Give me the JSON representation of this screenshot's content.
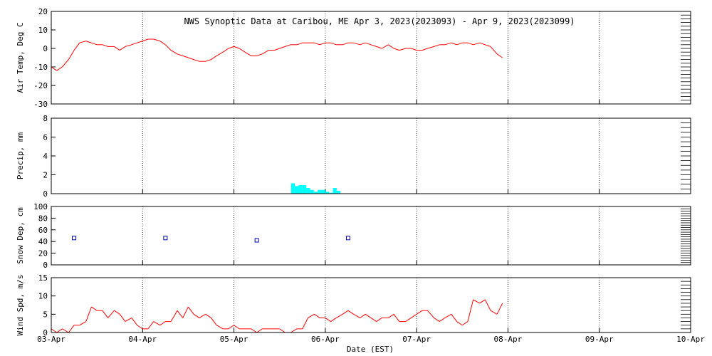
{
  "title": "NWS Synoptic Data at Caribou, ME   Apr  3, 2023(2023093) - Apr  9, 2023(2023099)",
  "xlabel": "Date (EST)",
  "colors": {
    "temp": "#ff0000",
    "precip": "#00ffff",
    "snow": "#0000aa",
    "wind": "#ff0000",
    "axis": "#000000",
    "grid": "#000000"
  },
  "chart_data": [
    {
      "type": "line",
      "name": "air-temp",
      "ylabel": "Air Temp, Deg C",
      "ylim": [
        -30,
        20
      ],
      "yticks": [
        -30,
        -20,
        -10,
        0,
        10,
        20
      ],
      "xlim": [
        0,
        7
      ],
      "xticks": [
        0,
        1,
        2,
        3,
        4,
        5,
        6,
        7
      ],
      "xticklabels": [
        "03-Apr",
        "04-Apr",
        "05-Apr",
        "06-Apr",
        "07-Apr",
        "08-Apr",
        "09-Apr",
        "10-Apr"
      ],
      "grid": true,
      "x": [
        0.0,
        0.06,
        0.12,
        0.19,
        0.25,
        0.31,
        0.38,
        0.44,
        0.5,
        0.56,
        0.62,
        0.69,
        0.75,
        0.81,
        0.88,
        0.94,
        1.0,
        1.06,
        1.12,
        1.19,
        1.25,
        1.31,
        1.38,
        1.44,
        1.5,
        1.56,
        1.62,
        1.69,
        1.75,
        1.81,
        1.88,
        1.94,
        2.0,
        2.06,
        2.12,
        2.19,
        2.25,
        2.31,
        2.38,
        2.44,
        2.5,
        2.56,
        2.62,
        2.69,
        2.75,
        2.81,
        2.88,
        2.94,
        3.0,
        3.06,
        3.12,
        3.19,
        3.25,
        3.31,
        3.38,
        3.44,
        3.5,
        3.56,
        3.62,
        3.69,
        3.75,
        3.81,
        3.88,
        3.94,
        4.0,
        4.06,
        4.12,
        4.19,
        4.25,
        4.31,
        4.38,
        4.44,
        4.5,
        4.56,
        4.62,
        4.69,
        4.75,
        4.81,
        4.88,
        4.94
      ],
      "values": [
        -10,
        -12,
        -10,
        -6,
        -1,
        3,
        4,
        3,
        2,
        2,
        1,
        1,
        -1,
        1,
        2,
        3,
        4,
        5,
        5,
        4,
        2,
        -1,
        -3,
        -4,
        -5,
        -6,
        -7,
        -7,
        -6,
        -4,
        -2,
        0,
        1,
        0,
        -2,
        -4,
        -4,
        -3,
        -1,
        -1,
        0,
        1,
        2,
        2,
        3,
        3,
        3,
        2,
        3,
        3,
        2,
        2,
        3,
        3,
        2,
        3,
        2,
        1,
        0,
        2,
        0,
        -1,
        0,
        0,
        -1,
        -1,
        0,
        1,
        2,
        2,
        3,
        2,
        3,
        3,
        2,
        3,
        2,
        1,
        -3,
        -5
      ]
    },
    {
      "type": "bar",
      "name": "precip",
      "ylabel": "Precip, mm",
      "ylim": [
        0,
        8
      ],
      "yticks": [
        0,
        2,
        4,
        6,
        8
      ],
      "xlim": [
        0,
        7
      ],
      "xticks": [
        0,
        1,
        2,
        3,
        4,
        5,
        6,
        7
      ],
      "xticklabels": [
        "03-Apr",
        "04-Apr",
        "05-Apr",
        "06-Apr",
        "07-Apr",
        "08-Apr",
        "09-Apr",
        "10-Apr"
      ],
      "grid": true,
      "bar_width": 0.0417,
      "x": [
        2.625,
        2.667,
        2.708,
        2.75,
        2.792,
        2.833,
        2.875,
        2.917,
        2.958,
        3.0,
        3.042,
        3.083,
        3.125
      ],
      "values": [
        1.1,
        0.8,
        0.9,
        0.9,
        0.6,
        0.4,
        0.2,
        0.4,
        0.4,
        0.2,
        0.1,
        0.6,
        0.3
      ]
    },
    {
      "type": "scatter",
      "name": "snow-depth",
      "ylabel": "Snow Dep, cm",
      "ylim": [
        0,
        100
      ],
      "yticks": [
        0,
        20,
        40,
        60,
        80,
        100
      ],
      "xlim": [
        0,
        7
      ],
      "xticks": [
        0,
        1,
        2,
        3,
        4,
        5,
        6,
        7
      ],
      "xticklabels": [
        "03-Apr",
        "04-Apr",
        "05-Apr",
        "06-Apr",
        "07-Apr",
        "08-Apr",
        "09-Apr",
        "10-Apr"
      ],
      "grid": true,
      "x": [
        0.25,
        1.25,
        2.25,
        3.25
      ],
      "values": [
        46,
        46,
        42,
        46
      ]
    },
    {
      "type": "line",
      "name": "wind-speed",
      "ylabel": "Wind Spd, m/s",
      "ylim": [
        0,
        15
      ],
      "yticks": [
        0,
        5,
        10,
        15
      ],
      "xlim": [
        0,
        7
      ],
      "xticks": [
        0,
        1,
        2,
        3,
        4,
        5,
        6,
        7
      ],
      "xticklabels": [
        "03-Apr",
        "04-Apr",
        "05-Apr",
        "06-Apr",
        "07-Apr",
        "08-Apr",
        "09-Apr",
        "10-Apr"
      ],
      "grid": true,
      "x": [
        0.0,
        0.06,
        0.12,
        0.19,
        0.25,
        0.31,
        0.38,
        0.44,
        0.5,
        0.56,
        0.62,
        0.69,
        0.75,
        0.81,
        0.88,
        0.94,
        1.0,
        1.06,
        1.12,
        1.19,
        1.25,
        1.31,
        1.38,
        1.44,
        1.5,
        1.56,
        1.62,
        1.69,
        1.75,
        1.81,
        1.88,
        1.94,
        2.0,
        2.06,
        2.12,
        2.19,
        2.25,
        2.31,
        2.38,
        2.44,
        2.5,
        2.56,
        2.62,
        2.69,
        2.75,
        2.81,
        2.88,
        2.94,
        3.0,
        3.06,
        3.12,
        3.19,
        3.25,
        3.31,
        3.38,
        3.44,
        3.5,
        3.56,
        3.62,
        3.69,
        3.75,
        3.81,
        3.88,
        3.94,
        4.0,
        4.06,
        4.12,
        4.19,
        4.25,
        4.31,
        4.38,
        4.44,
        4.5,
        4.56,
        4.62,
        4.69,
        4.75,
        4.81,
        4.88,
        4.94
      ],
      "values": [
        1,
        0,
        1,
        0,
        2,
        2,
        3,
        7,
        6,
        6,
        4,
        6,
        5,
        3,
        4,
        2,
        1,
        1,
        3,
        2,
        3,
        3,
        6,
        4,
        7,
        5,
        4,
        5,
        4,
        2,
        1,
        1,
        2,
        1,
        1,
        1,
        0,
        1,
        1,
        1,
        1,
        0,
        0,
        1,
        1,
        4,
        5,
        4,
        4,
        3,
        4,
        5,
        6,
        5,
        4,
        5,
        4,
        3,
        4,
        4,
        5,
        3,
        3,
        4,
        5,
        6,
        6,
        4,
        3,
        4,
        5,
        3,
        2,
        3,
        9,
        8,
        9,
        6,
        5,
        8
      ]
    }
  ]
}
